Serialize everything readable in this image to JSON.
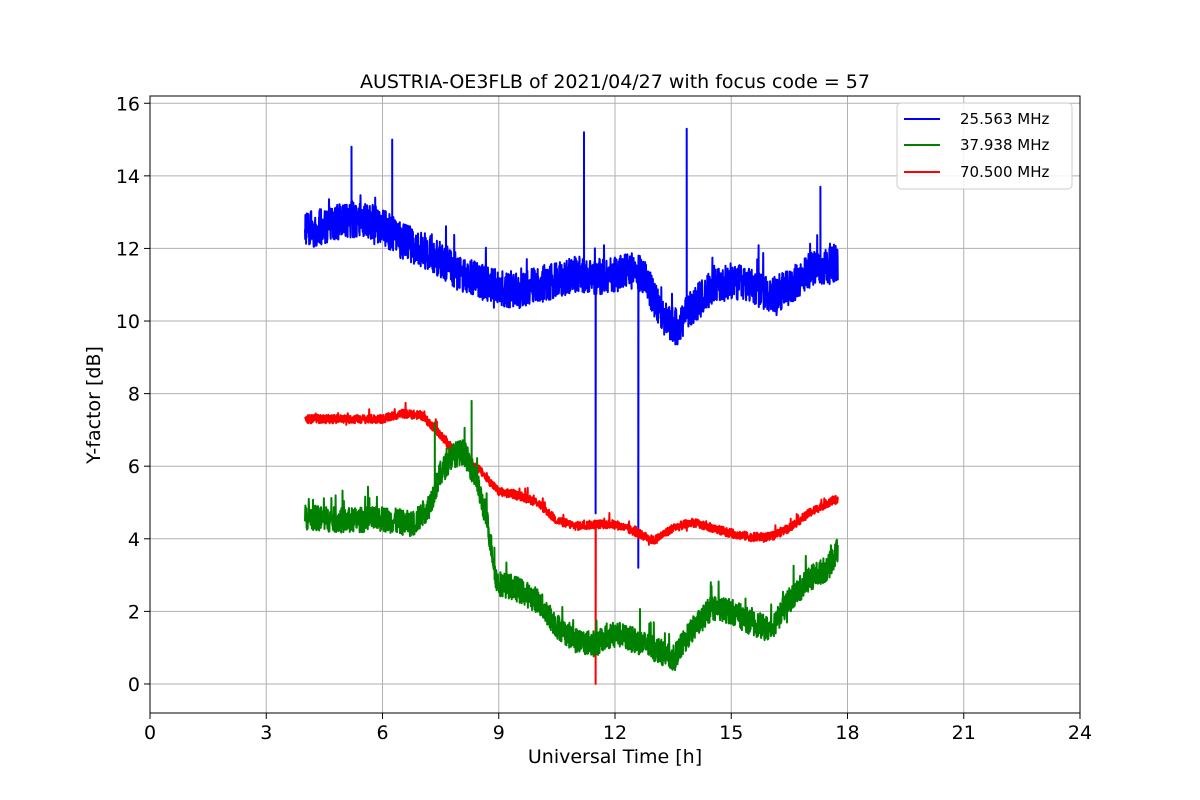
{
  "chart_data": {
    "type": "line",
    "title": "AUSTRIA-OE3FLB of 2021/04/27 with focus code = 57",
    "xlabel": "Universal Time [h]",
    "ylabel": "Y-factor [dB]",
    "xlim": [
      0,
      24
    ],
    "ylim": [
      -0.8,
      16.2
    ],
    "xticks": [
      0,
      3,
      6,
      9,
      12,
      15,
      18,
      21,
      24
    ],
    "yticks": [
      0,
      2,
      4,
      6,
      8,
      10,
      12,
      14,
      16
    ],
    "grid": true,
    "legend_position": "top-right",
    "series": [
      {
        "name": "25.563 MHz",
        "color": "#0000ff",
        "noise": 0.5,
        "points": [
          [
            4.0,
            12.5
          ],
          [
            4.5,
            12.6
          ],
          [
            5.0,
            12.8
          ],
          [
            5.5,
            12.8
          ],
          [
            6.0,
            12.6
          ],
          [
            6.5,
            12.2
          ],
          [
            7.0,
            12.0
          ],
          [
            7.5,
            11.7
          ],
          [
            8.0,
            11.3
          ],
          [
            8.5,
            11.1
          ],
          [
            9.0,
            10.9
          ],
          [
            9.5,
            10.8
          ],
          [
            10.0,
            11.0
          ],
          [
            10.5,
            11.1
          ],
          [
            11.0,
            11.3
          ],
          [
            11.5,
            11.2
          ],
          [
            12.0,
            11.3
          ],
          [
            12.5,
            11.4
          ],
          [
            12.8,
            11.2
          ],
          [
            13.0,
            10.6
          ],
          [
            13.3,
            10.0
          ],
          [
            13.6,
            9.8
          ],
          [
            14.0,
            10.4
          ],
          [
            14.5,
            10.9
          ],
          [
            15.0,
            11.1
          ],
          [
            15.5,
            11.0
          ],
          [
            16.0,
            10.7
          ],
          [
            16.5,
            10.9
          ],
          [
            17.0,
            11.4
          ],
          [
            17.5,
            11.5
          ],
          [
            17.75,
            11.6
          ]
        ],
        "spikes": [
          [
            11.2,
            15.2
          ],
          [
            11.5,
            4.7
          ],
          [
            12.6,
            3.2
          ],
          [
            13.85,
            15.3
          ],
          [
            6.25,
            15.0
          ],
          [
            5.2,
            14.8
          ],
          [
            17.3,
            13.7
          ]
        ]
      },
      {
        "name": "37.938 MHz",
        "color": "#008000",
        "noise": 0.35,
        "points": [
          [
            4.0,
            4.6
          ],
          [
            5.0,
            4.5
          ],
          [
            6.0,
            4.55
          ],
          [
            6.8,
            4.4
          ],
          [
            7.2,
            4.9
          ],
          [
            7.5,
            5.8
          ],
          [
            7.8,
            6.3
          ],
          [
            8.1,
            6.4
          ],
          [
            8.4,
            5.7
          ],
          [
            8.7,
            4.5
          ],
          [
            8.95,
            2.8
          ],
          [
            9.5,
            2.6
          ],
          [
            10.0,
            2.3
          ],
          [
            10.5,
            1.6
          ],
          [
            11.0,
            1.2
          ],
          [
            11.5,
            1.1
          ],
          [
            12.0,
            1.4
          ],
          [
            12.5,
            1.2
          ],
          [
            13.0,
            1.0
          ],
          [
            13.5,
            0.7
          ],
          [
            14.0,
            1.5
          ],
          [
            14.5,
            2.1
          ],
          [
            15.0,
            2.0
          ],
          [
            15.5,
            1.7
          ],
          [
            16.0,
            1.5
          ],
          [
            16.5,
            2.3
          ],
          [
            17.0,
            2.9
          ],
          [
            17.5,
            3.2
          ],
          [
            17.75,
            3.7
          ]
        ],
        "spikes": [
          [
            7.35,
            7.2
          ],
          [
            8.3,
            7.8
          ]
        ]
      },
      {
        "name": "70.500 MHz",
        "color": "#ff0000",
        "noise": 0.12,
        "points": [
          [
            4.0,
            7.3
          ],
          [
            5.0,
            7.3
          ],
          [
            6.0,
            7.3
          ],
          [
            6.5,
            7.45
          ],
          [
            7.0,
            7.4
          ],
          [
            7.3,
            7.1
          ],
          [
            7.7,
            6.6
          ],
          [
            8.0,
            6.3
          ],
          [
            8.5,
            5.9
          ],
          [
            9.0,
            5.3
          ],
          [
            9.5,
            5.2
          ],
          [
            10.0,
            5.0
          ],
          [
            10.5,
            4.5
          ],
          [
            11.0,
            4.35
          ],
          [
            11.5,
            4.4
          ],
          [
            12.0,
            4.4
          ],
          [
            12.5,
            4.2
          ],
          [
            13.0,
            3.95
          ],
          [
            13.5,
            4.3
          ],
          [
            14.0,
            4.45
          ],
          [
            14.5,
            4.3
          ],
          [
            15.0,
            4.15
          ],
          [
            15.5,
            4.05
          ],
          [
            16.0,
            4.05
          ],
          [
            16.5,
            4.3
          ],
          [
            17.0,
            4.7
          ],
          [
            17.5,
            5.0
          ],
          [
            17.75,
            5.1
          ]
        ],
        "spikes": [
          [
            11.5,
            0.0
          ]
        ]
      }
    ]
  }
}
